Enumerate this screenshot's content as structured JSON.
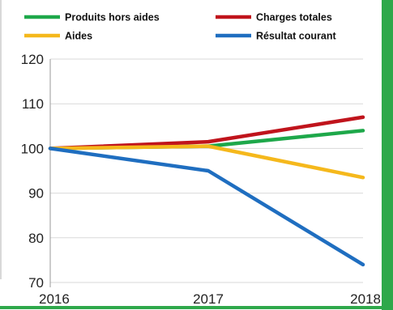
{
  "chart_data": {
    "type": "line",
    "x": [
      "2016",
      "2017",
      "2018"
    ],
    "series": [
      {
        "name": "Produits hors aides",
        "values": [
          100,
          100.5,
          104
        ],
        "color": "#1ea84a"
      },
      {
        "name": "Charges totales",
        "values": [
          100,
          101.5,
          107
        ],
        "color": "#c0141c"
      },
      {
        "name": "Aides",
        "values": [
          100,
          100.5,
          93.5
        ],
        "color": "#f5b81c"
      },
      {
        "name": "Résultat courant",
        "values": [
          100,
          95,
          74
        ],
        "color": "#1f6ec0"
      }
    ],
    "yticks": [
      70,
      80,
      90,
      100,
      110,
      120
    ],
    "ylim": [
      70,
      120
    ],
    "grid": true,
    "legend": "top",
    "frame_color": "#2ea84a"
  }
}
